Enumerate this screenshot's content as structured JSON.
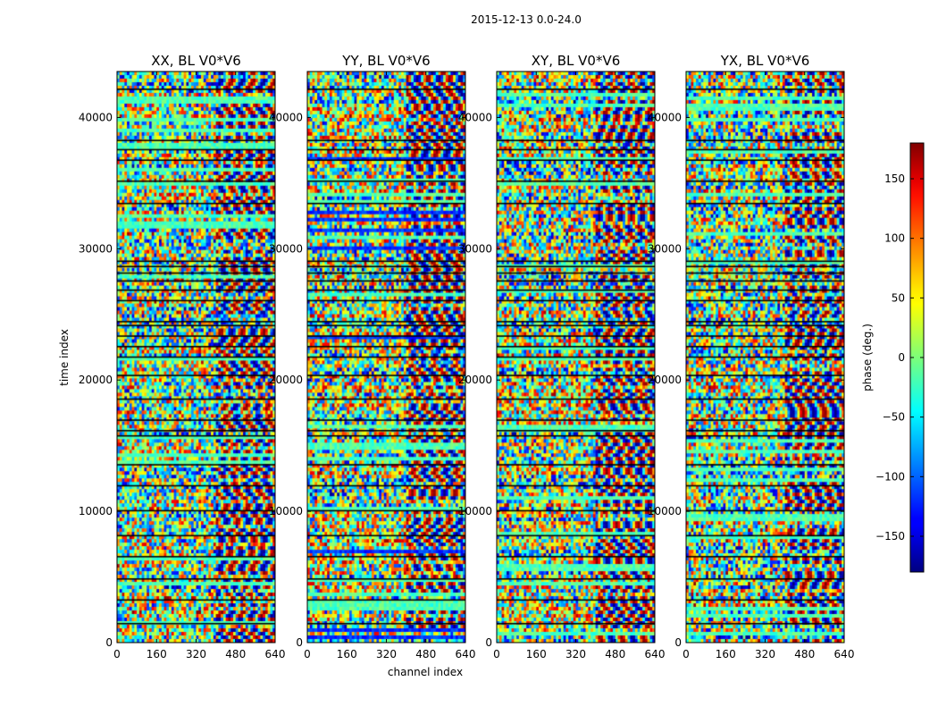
{
  "chart_data": {
    "type": "heatmap",
    "suptitle": "2015-12-13 0.0-24.0",
    "xlabel": "channel index",
    "ylabel": "time index",
    "xlim": [
      0,
      640
    ],
    "ylim": [
      0,
      43500
    ],
    "xticks": [
      0,
      160,
      320,
      480,
      640
    ],
    "yticks": [
      0,
      10000,
      20000,
      30000,
      40000
    ],
    "xtick_labels": [
      "0",
      "160",
      "320",
      "480",
      "640"
    ],
    "ytick_labels": [
      "0",
      "10000",
      "20000",
      "30000",
      "40000"
    ],
    "panels": [
      {
        "title": "XX, BL V0*V6"
      },
      {
        "title": "YY, BL V0*V6"
      },
      {
        "title": "XY, BL V0*V6"
      },
      {
        "title": "YX, BL V0*V6"
      }
    ],
    "colorbar": {
      "label": "phase (deg.)",
      "range": [
        -180,
        180
      ],
      "ticks": [
        150,
        100,
        50,
        0,
        -50,
        -100,
        -150
      ],
      "tick_labels": [
        "150",
        "100",
        "50",
        "0",
        "−50",
        "−100",
        "−150"
      ],
      "colormap": "jet"
    },
    "flagged_rows": [
      1500,
      3300,
      4900,
      6600,
      8200,
      10100,
      12000,
      13600,
      15800,
      16200,
      17000,
      18600,
      20400,
      21800,
      22600,
      23400,
      24200,
      24500,
      26100,
      26900,
      27600,
      28200,
      28700,
      29100,
      33500,
      35200,
      36800,
      37600,
      38300,
      42200
    ]
  }
}
